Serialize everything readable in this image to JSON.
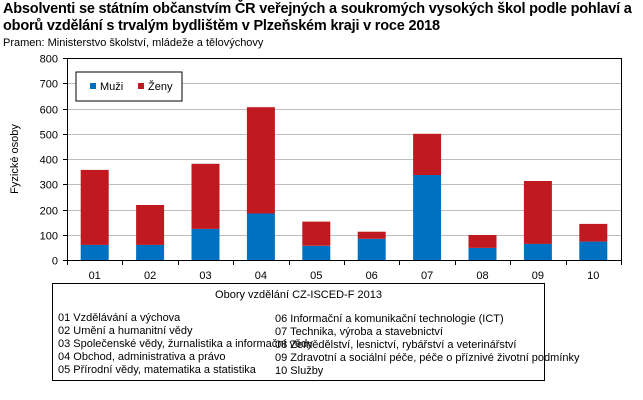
{
  "header": {
    "title": "Absolventi se státním občanstvím ČR veřejných a soukromých vysokých škol podle pohlaví a oborů vzdělání s trvalým bydlištěm v Plzeňském kraji v roce 2018",
    "source": "Pramen: Ministerstvo školství, mládeže a tělovýchovy"
  },
  "chart_data": {
    "type": "bar",
    "stacked": true,
    "title": "Absolventi se státním občanstvím ČR veřejných a soukromých vysokých škol podle pohlaví a oborů vzdělání s trvalým bydlištěm v Plzeňském kraji v roce 2018",
    "xlabel": "",
    "ylabel": "Fyzické osoby",
    "ylim": [
      0,
      800
    ],
    "yticks": [
      0,
      100,
      200,
      300,
      400,
      500,
      600,
      700,
      800
    ],
    "grid": true,
    "legend_position": "top-left",
    "categories": [
      "01",
      "02",
      "03",
      "04",
      "05",
      "06",
      "07",
      "08",
      "09",
      "10"
    ],
    "series": [
      {
        "name": "Muži",
        "color": "#0070C0",
        "values": [
          60,
          60,
          123,
          184,
          56,
          84,
          337,
          48,
          64,
          73
        ]
      },
      {
        "name": "Ženy",
        "color": "#C0191F",
        "values": [
          297,
          158,
          258,
          421,
          96,
          28,
          163,
          51,
          249,
          70
        ]
      }
    ]
  },
  "category_legend": {
    "title": "Obory vzdělání CZ-ISCED-F  2013",
    "items": [
      "01 Vzdělávání a výchova",
      "02 Umění  a humanitní  vědy",
      "03 Společenské vědy, žurnalistika a informační vědy",
      "04 Obchod, administrativa a právo",
      "05 Přírodní  vědy, matematika  a statistika",
      "06 Informační a komunikační  technologie (ICT)",
      "07 Technika,  výroba a stavebnictví",
      "08 Zemědělství,  lesnictví, rybářství a veterinářství",
      "09 Zdravotní a sociální péče, péče o příznivé životní podmínky",
      "10 Služby"
    ]
  }
}
